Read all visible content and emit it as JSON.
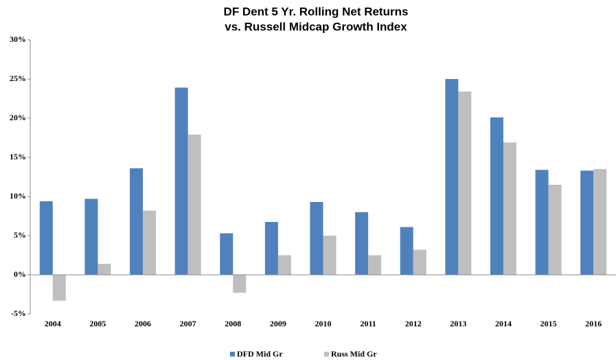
{
  "chart_data": {
    "type": "bar",
    "title": [
      "DF Dent 5 Yr. Rolling Net Returns",
      "vs. Russell Midcap Growth Index"
    ],
    "categories": [
      "2004",
      "2005",
      "2006",
      "2007",
      "2008",
      "2009",
      "2010",
      "2011",
      "2012",
      "2013",
      "2014",
      "2015",
      "2016"
    ],
    "series": [
      {
        "name": "DFD Mid Gr",
        "color": "#4f81bd",
        "values": [
          9.4,
          9.7,
          13.6,
          23.9,
          5.3,
          6.75,
          9.3,
          8.0,
          6.1,
          25.0,
          20.1,
          13.4,
          13.3
        ]
      },
      {
        "name": "Russ Mid Gr",
        "color": "#bfbfbf",
        "values": [
          -3.3,
          1.4,
          8.2,
          17.9,
          -2.3,
          2.5,
          5.0,
          2.5,
          3.2,
          23.4,
          16.9,
          11.5,
          13.5
        ]
      }
    ],
    "ylim": [
      -5,
      30
    ],
    "yticks": [
      {
        "value": -5,
        "label": "-5%"
      },
      {
        "value": 0,
        "label": "0%"
      },
      {
        "value": 5,
        "label": "5%"
      },
      {
        "value": 10,
        "label": "10%"
      },
      {
        "value": 15,
        "label": "15%"
      },
      {
        "value": 20,
        "label": "20%"
      },
      {
        "value": 25,
        "label": "25%"
      },
      {
        "value": 30,
        "label": "30%"
      }
    ],
    "grid": false,
    "legend": "bottom"
  }
}
